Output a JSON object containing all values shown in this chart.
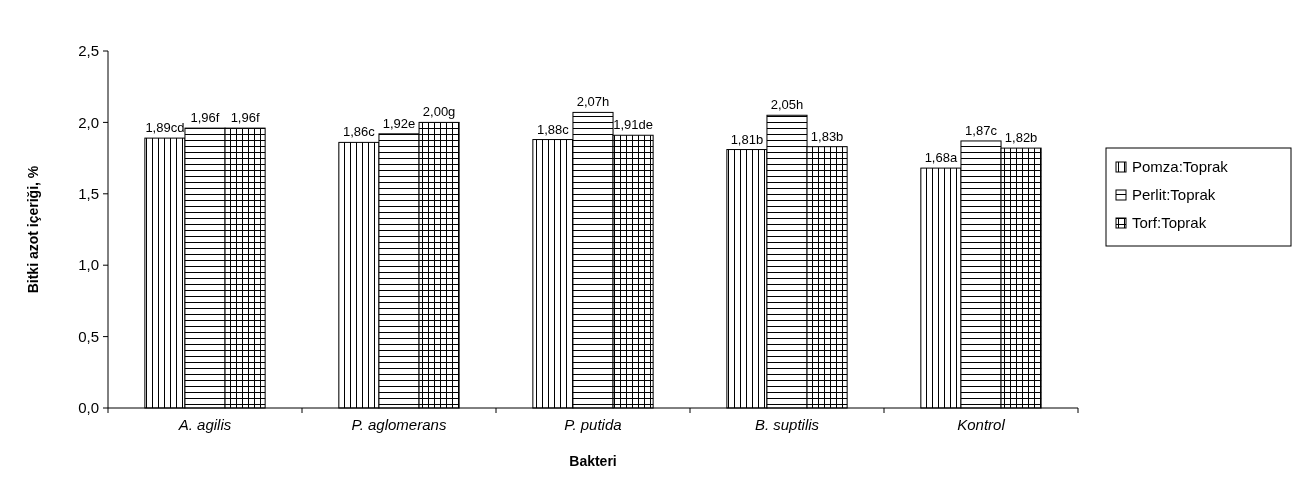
{
  "chart_data": {
    "type": "bar",
    "xlabel": "Bakteri",
    "ylabel": "Bitki azot içeriği, %",
    "categories": [
      "A. agilis",
      "P. aglomerans",
      "P. putida",
      "B. suptilis",
      "Kontrol"
    ],
    "series": [
      {
        "name": "Pomza:Toprak",
        "color": "#000000",
        "values": [
          1.89,
          1.86,
          1.88,
          1.81,
          1.68
        ],
        "value_labels": [
          "1,89cd",
          "1,86c",
          "1,88c",
          "1,81b",
          "1,68a"
        ]
      },
      {
        "name": "Perlit:Toprak",
        "color": "#000000",
        "values": [
          1.96,
          1.92,
          2.07,
          2.05,
          1.87
        ],
        "value_labels": [
          "1,96f",
          "1,92e",
          "2,07h",
          "2,05h",
          "1,87c"
        ]
      },
      {
        "name": "Torf:Toprak",
        "color": "#000000",
        "values": [
          1.96,
          2.0,
          1.91,
          1.83,
          1.82
        ],
        "value_labels": [
          "1,96f",
          "2,00g",
          "1,91de",
          "1,83b",
          "1,82b"
        ]
      }
    ],
    "ylim": [
      0,
      2.5
    ],
    "yticks": [
      {
        "value": 0,
        "label": "0,0"
      },
      {
        "value": 0.5,
        "label": "0,5"
      },
      {
        "value": 1,
        "label": "1,0"
      },
      {
        "value": 1.5,
        "label": "1,5"
      },
      {
        "value": 2,
        "label": "2,0"
      },
      {
        "value": 2.5,
        "label": "2,5"
      }
    ],
    "grid": false,
    "legend": "right"
  }
}
